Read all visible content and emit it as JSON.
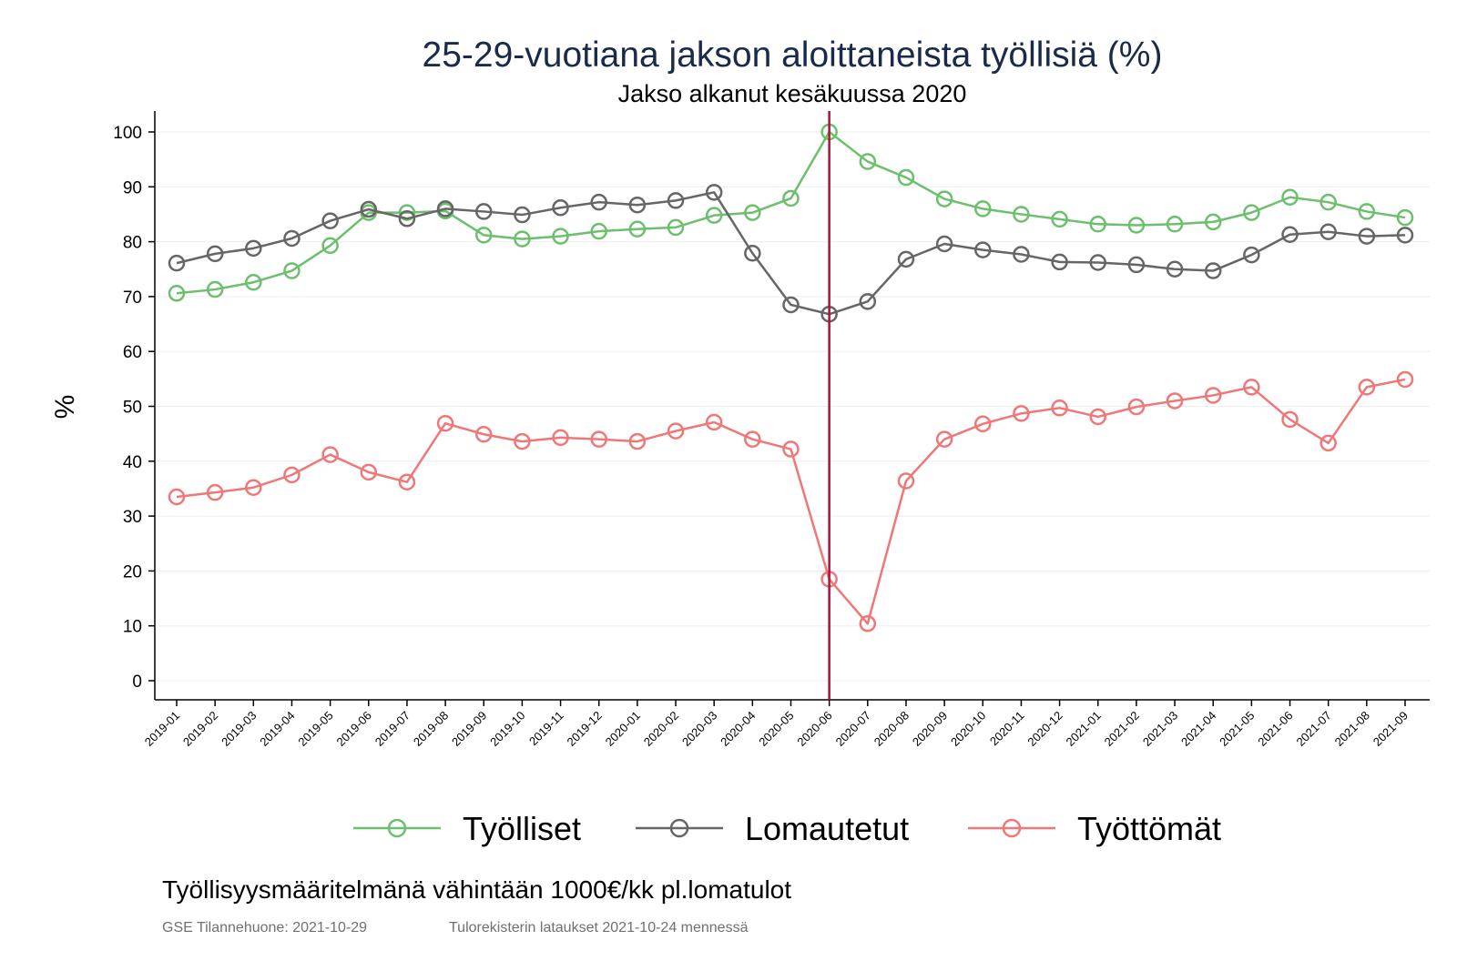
{
  "chart_data": {
    "type": "line",
    "title": "25-29-vuotiana jakson aloittaneista työllisiä (%)",
    "subtitle": "Jakso alkanut kesäkuussa 2020",
    "xlabel": "",
    "ylabel": "%",
    "ylim": [
      0,
      100
    ],
    "yticks": [
      "0",
      "10",
      "20",
      "30",
      "40",
      "50",
      "60",
      "70",
      "80",
      "90",
      "100"
    ],
    "grid": true,
    "legend_position": "bottom",
    "reference_line": {
      "x": "2020-06",
      "color": "#b0103a"
    },
    "x": [
      "2019-01",
      "2019-02",
      "2019-03",
      "2019-04",
      "2019-05",
      "2019-06",
      "2019-07",
      "2019-08",
      "2019-09",
      "2019-10",
      "2019-11",
      "2019-12",
      "2020-01",
      "2020-02",
      "2020-03",
      "2020-04",
      "2020-05",
      "2020-06",
      "2020-07",
      "2020-08",
      "2020-09",
      "2020-10",
      "2020-11",
      "2020-12",
      "2021-01",
      "2021-02",
      "2021-03",
      "2021-04",
      "2021-05",
      "2021-06",
      "2021-07",
      "2021-08",
      "2021-09"
    ],
    "series": [
      {
        "name": "Työlliset",
        "color": "#6cbf6c",
        "values": [
          70.6,
          71.3,
          72.6,
          74.7,
          79.3,
          85.3,
          85.3,
          85.6,
          81.2,
          80.5,
          81.0,
          81.9,
          82.3,
          82.6,
          84.8,
          85.3,
          87.9,
          100,
          94.6,
          91.7,
          87.8,
          86.0,
          85.0,
          84.1,
          83.2,
          83.0,
          83.2,
          83.6,
          85.3,
          88.1,
          87.2,
          85.5,
          84.4
        ]
      },
      {
        "name": "Lomautetut",
        "color": "#666666",
        "values": [
          76.1,
          77.8,
          78.8,
          80.6,
          83.8,
          85.9,
          84.2,
          86.0,
          85.5,
          84.9,
          86.2,
          87.2,
          86.7,
          87.5,
          89.0,
          77.9,
          68.5,
          66.8,
          69.1,
          76.8,
          79.6,
          78.5,
          77.7,
          76.3,
          76.2,
          75.8,
          75.0,
          74.7,
          77.6,
          81.3,
          81.8,
          81.0,
          81.2
        ]
      },
      {
        "name": "Työttömät",
        "color": "#f07777",
        "values": [
          33.5,
          34.3,
          35.2,
          37.5,
          41.2,
          38.0,
          36.2,
          46.9,
          44.9,
          43.6,
          44.3,
          44.0,
          43.6,
          45.5,
          47.1,
          44.0,
          42.2,
          18.5,
          10.4,
          36.4,
          44.0,
          46.8,
          48.7,
          49.7,
          48.1,
          49.9,
          51.0,
          52.0,
          53.5,
          47.6,
          43.3,
          53.5,
          54.9
        ]
      }
    ]
  },
  "notes": {
    "definition": "Työllisyysmääritelmänä vähintään 1000€/kk pl.lomatulot",
    "source": "GSE Tilannehuone: 2021-10-29",
    "data_loads": "Tulorekisterin lataukset 2021-10-24 mennessä"
  }
}
